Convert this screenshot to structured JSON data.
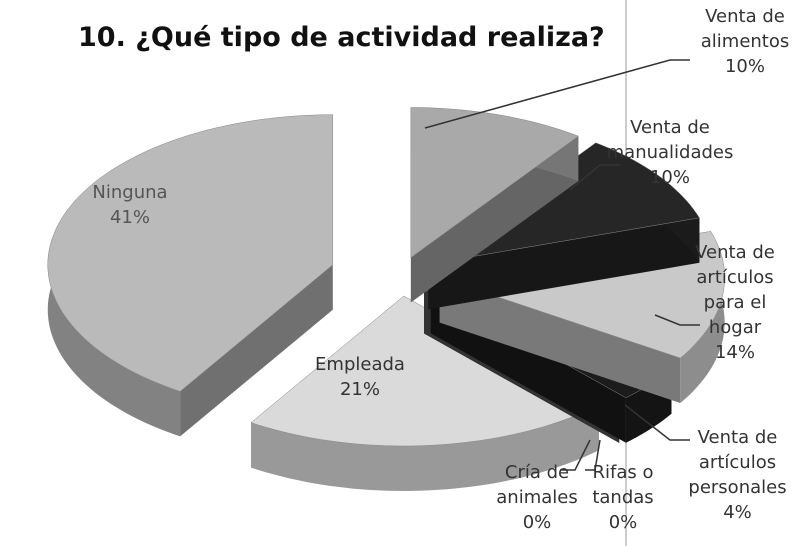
{
  "chart_data": {
    "type": "pie",
    "title": "10. ¿Qué tipo de actividad realiza?",
    "categories": [
      "Venta de alimentos",
      "Venta de manualidades",
      "Venta de artículos para el hogar",
      "Venta de artículos personales",
      "Rifas o tandas",
      "Cría de animales",
      "Empleada",
      "Ninguna"
    ],
    "values": [
      10,
      10,
      14,
      4,
      0,
      0,
      21,
      41
    ],
    "value_labels": [
      "10%",
      "10%",
      "14%",
      "4%",
      "0%",
      "0%",
      "21%",
      "41%"
    ],
    "colors": [
      "#a9a9a9",
      "#262626",
      "#c9c9c9",
      "#1c1c1c",
      "#555555",
      "#555555",
      "#dadada",
      "#bababa"
    ]
  }
}
